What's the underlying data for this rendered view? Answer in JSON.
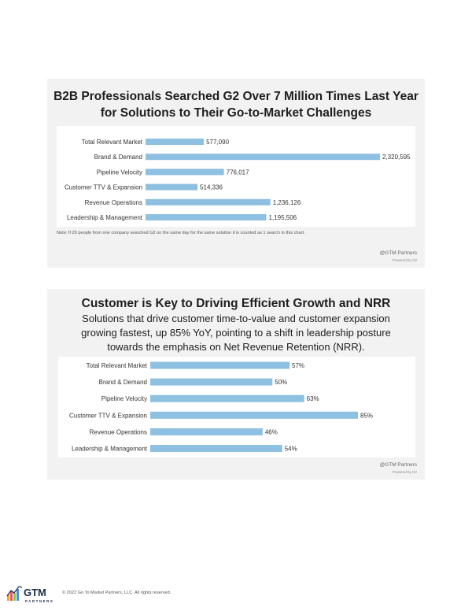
{
  "chart_data": [
    {
      "type": "bar",
      "orientation": "horizontal",
      "title": "B2B Professionals Searched G2 Over 7 Million Times Last Year for Solutions to Their Go-to-Market Challenges",
      "categories": [
        "Total Relevant Market",
        "Brand & Demand",
        "Pipeline Velocity",
        "Customer TTV & Expansion",
        "Revenue Operations",
        "Leadership & Management"
      ],
      "values": [
        577090,
        2320595,
        776017,
        514336,
        1236126,
        1195506
      ],
      "value_labels": [
        "577,090",
        "2,320,595",
        "776,017",
        "514,336",
        "1,236,126",
        "1,195,506"
      ],
      "xlim": [
        0,
        2320595
      ],
      "color": "#8ec0e2",
      "note": "Note: If 20 people from one company searched G2 on the same day for the same solution it is counted as 1 search in this chart."
    },
    {
      "type": "bar",
      "orientation": "horizontal",
      "title": "Customer is Key to Driving Efficient Growth and NRR",
      "subtitle": "Solutions that drive customer time-to-value and customer expansion growing fastest, up 85% YoY, pointing to a shift in leadership posture towards the emphasis on Net Revenue Retention (NRR).",
      "categories": [
        "Total Relevant Market",
        "Brand & Demand",
        "Pipeline Velocity",
        "Customer TTV & Expansion",
        "Revenue Operations",
        "Leadership & Management"
      ],
      "values": [
        57,
        50,
        63,
        85,
        46,
        54
      ],
      "value_labels": [
        "57%",
        "50%",
        "63%",
        "85%",
        "46%",
        "54%"
      ],
      "xlim": [
        0,
        85
      ],
      "color": "#8ec0e2"
    }
  ],
  "credits": {
    "brand": "@GTM Partners",
    "powered": "Powered by G2"
  },
  "footer": {
    "logo_text": "GTM",
    "logo_sub": "PARTNERS",
    "copyright": "© 2022 Go To Market Partners, LLC. All rights reserved."
  }
}
